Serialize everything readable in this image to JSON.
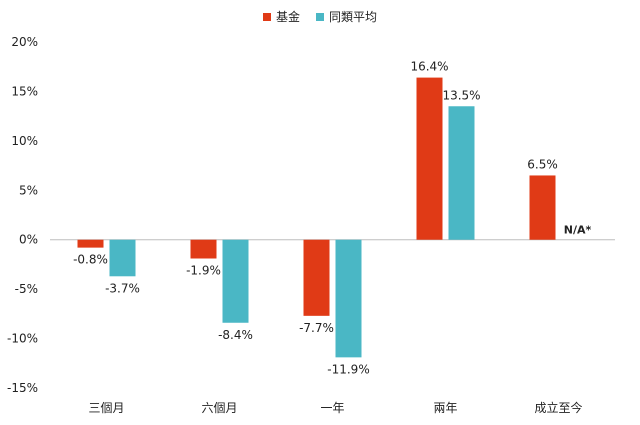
{
  "chart_data": {
    "type": "bar",
    "categories": [
      "三個月",
      "六個月",
      "一年",
      "兩年",
      "成立至今"
    ],
    "series": [
      {
        "name": "基金",
        "color": "#e03a16",
        "values": [
          -0.8,
          -1.9,
          -7.7,
          16.4,
          6.5
        ],
        "labels": [
          "-0.8%",
          "-1.9%",
          "-7.7%",
          "16.4%",
          "6.5%"
        ]
      },
      {
        "name": "同類平均",
        "color": "#4ab7c5",
        "values": [
          -3.7,
          -8.4,
          -11.9,
          13.5,
          null
        ],
        "labels": [
          "-3.7%",
          "-8.4%",
          "-11.9%",
          "13.5%",
          "N/A*"
        ]
      }
    ],
    "yticks": [
      20,
      15,
      10,
      5,
      0,
      -5,
      -10,
      -15
    ],
    "ytick_labels": [
      "20%",
      "15%",
      "10%",
      "5%",
      "0%",
      "-5%",
      "-10%",
      "-15%"
    ],
    "ylim": [
      -15,
      20
    ],
    "grid": false,
    "legend_position": "top-center"
  }
}
